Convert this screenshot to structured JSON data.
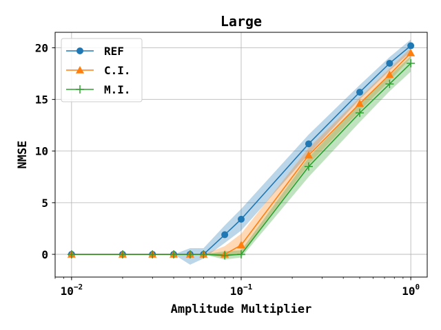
{
  "chart_data": {
    "type": "line",
    "title": "Large",
    "xlabel": "Amplitude Multiplier",
    "ylabel": "NMSE",
    "xscale": "log",
    "xlim": [
      0.008,
      1.25
    ],
    "ylim": [
      -2.2,
      21.5
    ],
    "xticks": [
      {
        "value": 0.01,
        "base": "10",
        "exp": "−2"
      },
      {
        "value": 0.1,
        "base": "10",
        "exp": "−1"
      },
      {
        "value": 1,
        "base": "10",
        "exp": "0"
      }
    ],
    "yticks": [
      0,
      5,
      10,
      15,
      20
    ],
    "grid": true,
    "legend_position": "top-left",
    "x": [
      0.01,
      0.02,
      0.03,
      0.04,
      0.05,
      0.06,
      0.08,
      0.1,
      0.25,
      0.5,
      0.75,
      1.0
    ],
    "series": [
      {
        "name": "REF",
        "color": "#1f77b4",
        "marker": "circle",
        "values": [
          0,
          0,
          0,
          0,
          0,
          0,
          1.9,
          3.4,
          10.7,
          15.7,
          18.5,
          20.2
        ],
        "lower": [
          0,
          0,
          0,
          0,
          -1.0,
          -0.4,
          1.1,
          2.3,
          9.7,
          15.0,
          17.8,
          19.6
        ],
        "upper": [
          0,
          0,
          0,
          0,
          0.6,
          0.6,
          2.8,
          4.4,
          11.6,
          16.4,
          19.1,
          20.8
        ]
      },
      {
        "name": "C.I.",
        "color": "#ff7f0e",
        "marker": "triangle",
        "values": [
          0,
          0,
          0,
          0,
          0,
          0,
          0,
          0.9,
          9.6,
          14.6,
          17.4,
          19.5
        ],
        "lower": [
          0,
          0,
          0,
          0,
          0,
          0,
          -0.3,
          0.1,
          8.7,
          13.9,
          16.8,
          19.0
        ],
        "upper": [
          0,
          0,
          0,
          0,
          0,
          0,
          0.8,
          2.0,
          10.3,
          15.2,
          18.0,
          20.0
        ]
      },
      {
        "name": "M.I.",
        "color": "#2ca02c",
        "marker": "plus",
        "values": [
          0,
          0,
          0,
          0,
          0,
          0,
          -0.1,
          0,
          8.5,
          13.7,
          16.5,
          18.5
        ],
        "lower": [
          0,
          0,
          0,
          0,
          0,
          0,
          -0.5,
          -0.3,
          7.5,
          12.8,
          15.8,
          17.7
        ],
        "upper": [
          0,
          0,
          0,
          0,
          0,
          0,
          0.3,
          0.4,
          9.4,
          14.6,
          17.3,
          19.2
        ]
      }
    ]
  }
}
